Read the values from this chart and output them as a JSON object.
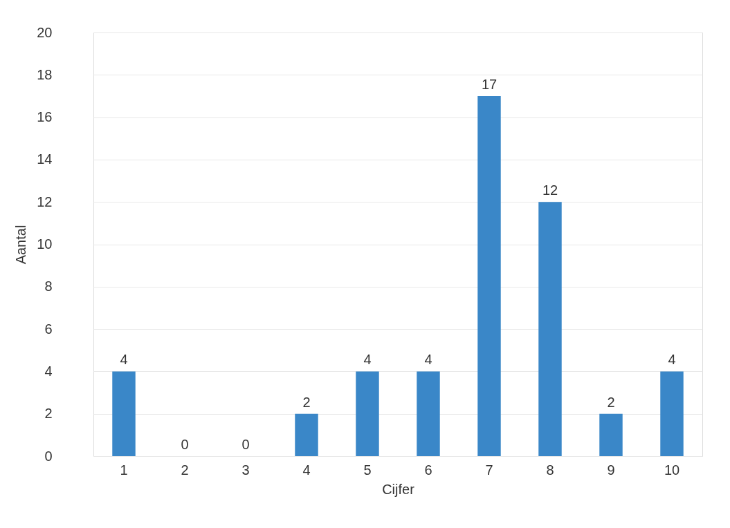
{
  "chart_data": {
    "type": "bar",
    "xlabel": "Cijfer",
    "ylabel": "Aantal",
    "categories": [
      "1",
      "2",
      "3",
      "4",
      "5",
      "6",
      "7",
      "8",
      "9",
      "10"
    ],
    "values": [
      4,
      0,
      0,
      2,
      4,
      4,
      17,
      12,
      2,
      4
    ],
    "color": "#3a87c8",
    "ylim": [
      0,
      20
    ],
    "yticks": [
      0,
      2,
      4,
      6,
      8,
      10,
      12,
      14,
      16,
      18,
      20
    ],
    "grid": "y",
    "data_labels": true
  }
}
